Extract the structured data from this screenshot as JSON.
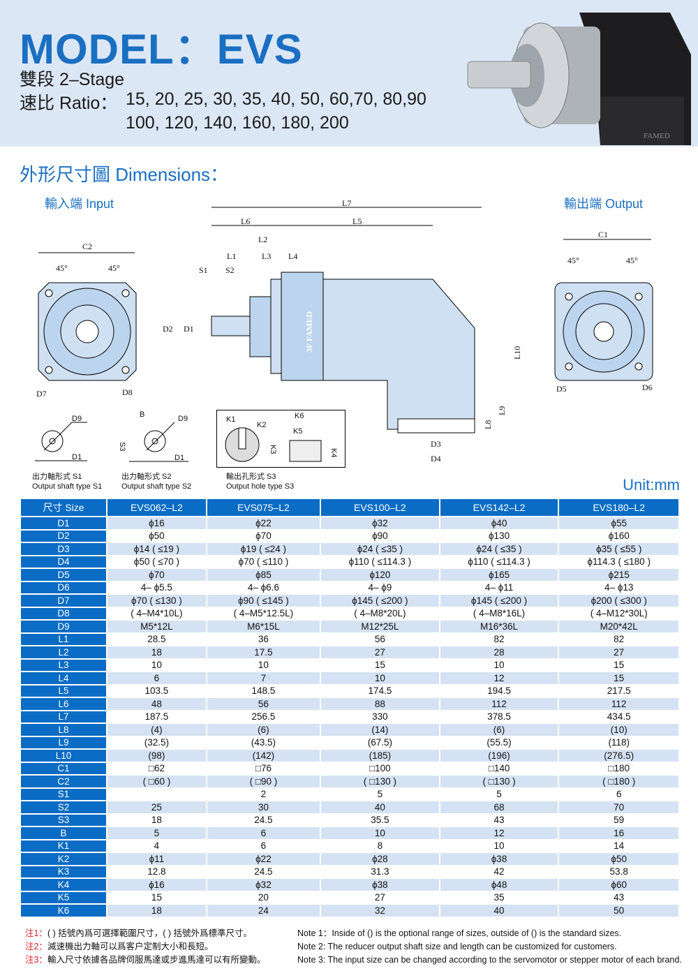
{
  "header": {
    "title": "MODEL：EVS",
    "stage": "雙段  2–Stage",
    "ratio_label": "速比  Ratio：",
    "ratio_line1": "15, 20, 25, 30, 35, 40, 50, 60,70, 80,90",
    "ratio_line2": "100, 120, 140, 160, 180, 200",
    "product_logo": "FAMED"
  },
  "section_title": "外形尺寸圖 Dimensions：",
  "input_label": "輸入端 Input",
  "output_label": "輸出端 Output",
  "unit": "Unit:mm",
  "diagram": {
    "c2": "C2",
    "c1": "C1",
    "deg": "45°",
    "d7": "D7",
    "d8": "D8",
    "d5": "D5",
    "d6": "D6",
    "l7": "L7",
    "l6": "L6",
    "l5": "L5",
    "l2": "L2",
    "l1": "L1",
    "l3": "L3",
    "l4": "L4",
    "s1": "S1",
    "s2": "S2",
    "d2": "D2",
    "d1": "D1",
    "l10": "L10",
    "l8": "L8",
    "l9": "L9",
    "d3": "D3",
    "d4": "D4",
    "d9": "D9",
    "b": "B",
    "s3": "S3",
    "k1": "K1",
    "k2": "K2",
    "k3": "K3",
    "k4": "K4",
    "k5": "K5",
    "k6": "K6",
    "brand": "3F FAMED"
  },
  "captions": {
    "s1_cn": "出力軸形式 S1",
    "s1_en": "Output shaft type S1",
    "s2_cn": "出力軸形式 S2",
    "s2_en": "Output shaft type S2",
    "s3_cn": "輸出孔形式 S3",
    "s3_en": "Output hole type S3"
  },
  "table": {
    "headers": [
      "尺寸 Size",
      "EVS062–L2",
      "EVS075–L2",
      "EVS100–L2",
      "EVS142–L2",
      "EVS180–L2"
    ],
    "rows": [
      [
        "D1",
        "ϕ16",
        "ϕ22",
        "ϕ32",
        "ϕ40",
        "ϕ55"
      ],
      [
        "D2",
        "ϕ50",
        "ϕ70",
        "ϕ90",
        "ϕ130",
        "ϕ160"
      ],
      [
        "D3",
        "ϕ14 ( ≤19 )",
        "ϕ19 ( ≤24 )",
        "ϕ24 ( ≤35 )",
        "ϕ24 ( ≤35 )",
        "ϕ35 ( ≤55 )"
      ],
      [
        "D4",
        "ϕ50 ( ≤70 )",
        "ϕ70 ( ≤110 )",
        "ϕ110 ( ≤114.3 )",
        "ϕ110 ( ≤114.3 )",
        "ϕ114.3 ( ≤180 )"
      ],
      [
        "D5",
        "ϕ70",
        "ϕ85",
        "ϕ120",
        "ϕ165",
        "ϕ215"
      ],
      [
        "D6",
        "4– ϕ5.5",
        "4– ϕ6.6",
        "4– ϕ9",
        "4– ϕ11",
        "4– ϕ13"
      ],
      [
        "D7",
        "ϕ70 ( ≤130 )",
        "ϕ90 ( ≤145 )",
        "ϕ145 ( ≤200 )",
        "ϕ145 ( ≤200 )",
        "ϕ200 ( ≤300 )"
      ],
      [
        "D8",
        "( 4–M4*10L)",
        "( 4–M5*12.5L)",
        "( 4–M8*20L)",
        "( 4–M8*16L)",
        "( 4–M12*30L)"
      ],
      [
        "D9",
        "M5*12L",
        "M6*15L",
        "M12*25L",
        "M16*36L",
        "M20*42L"
      ],
      [
        "L1",
        "28.5",
        "36",
        "56",
        "82",
        "82"
      ],
      [
        "L2",
        "18",
        "17.5",
        "27",
        "28",
        "27"
      ],
      [
        "L3",
        "10",
        "10",
        "15",
        "10",
        "15"
      ],
      [
        "L4",
        "6",
        "7",
        "10",
        "12",
        "15"
      ],
      [
        "L5",
        "103.5",
        "148.5",
        "174.5",
        "194.5",
        "217.5"
      ],
      [
        "L6",
        "48",
        "56",
        "88",
        "112",
        "112"
      ],
      [
        "L7",
        "187.5",
        "256.5",
        "330",
        "378.5",
        "434.5"
      ],
      [
        "L8",
        "(4)",
        "(6)",
        "(14)",
        "(6)",
        "(10)"
      ],
      [
        "L9",
        "(32.5)",
        "(43.5)",
        "(67.5)",
        "(55.5)",
        "(118)"
      ],
      [
        "L10",
        "(98)",
        "(142)",
        "(185)",
        "(196)",
        "(276.5)"
      ],
      [
        "C1",
        "□62",
        "□76",
        "□100",
        "□140",
        "□180"
      ],
      [
        "C2",
        "( □60 )",
        "( □90 )",
        "( □130 )",
        "( □130 )",
        "( □180 )"
      ],
      [
        "S1",
        "",
        "2",
        "5",
        "5",
        "6"
      ],
      [
        "S2",
        "25",
        "30",
        "40",
        "68",
        "70"
      ],
      [
        "S3",
        "18",
        "24.5",
        "35.5",
        "43",
        "59"
      ],
      [
        "B",
        "5",
        "6",
        "10",
        "12",
        "16"
      ],
      [
        "K1",
        "4",
        "6",
        "8",
        "10",
        "14"
      ],
      [
        "K2",
        "ϕ11",
        "ϕ22",
        "ϕ28",
        "ϕ38",
        "ϕ50"
      ],
      [
        "K3",
        "12.8",
        "24.5",
        "31.3",
        "42",
        "53.8"
      ],
      [
        "K4",
        "ϕ16",
        "ϕ32",
        "ϕ38",
        "ϕ48",
        "ϕ60"
      ],
      [
        "K5",
        "15",
        "20",
        "27",
        "35",
        "43"
      ],
      [
        "K6",
        "18",
        "24",
        "32",
        "40",
        "50"
      ]
    ]
  },
  "notes": {
    "cn": [
      {
        "tag": "注1：",
        "text": "( ) 括號內爲可選擇範圍尺寸，( ) 括號外爲標準尺寸。"
      },
      {
        "tag": "注2：",
        "text": "減速機出力軸可以爲客户定制大小和長短。"
      },
      {
        "tag": "注3：",
        "text": "輸入尺寸依據各品牌伺服馬達或步進馬達可以有所變動。"
      }
    ],
    "en": [
      "Note 1：Inside of () is the optional range of sizes, outside of () is the standard sizes.",
      "Note 2: The reducer output shaft size and length can be customized for customers.",
      "Note 3: The input size can be changed according to the servomotor or stepper motor of each brand."
    ]
  },
  "colors": {
    "brand_blue": "#1a6fc2",
    "table_header": "#0a6cc4",
    "row_alt": "#d5e2f3",
    "note_red": "#e0202a"
  }
}
